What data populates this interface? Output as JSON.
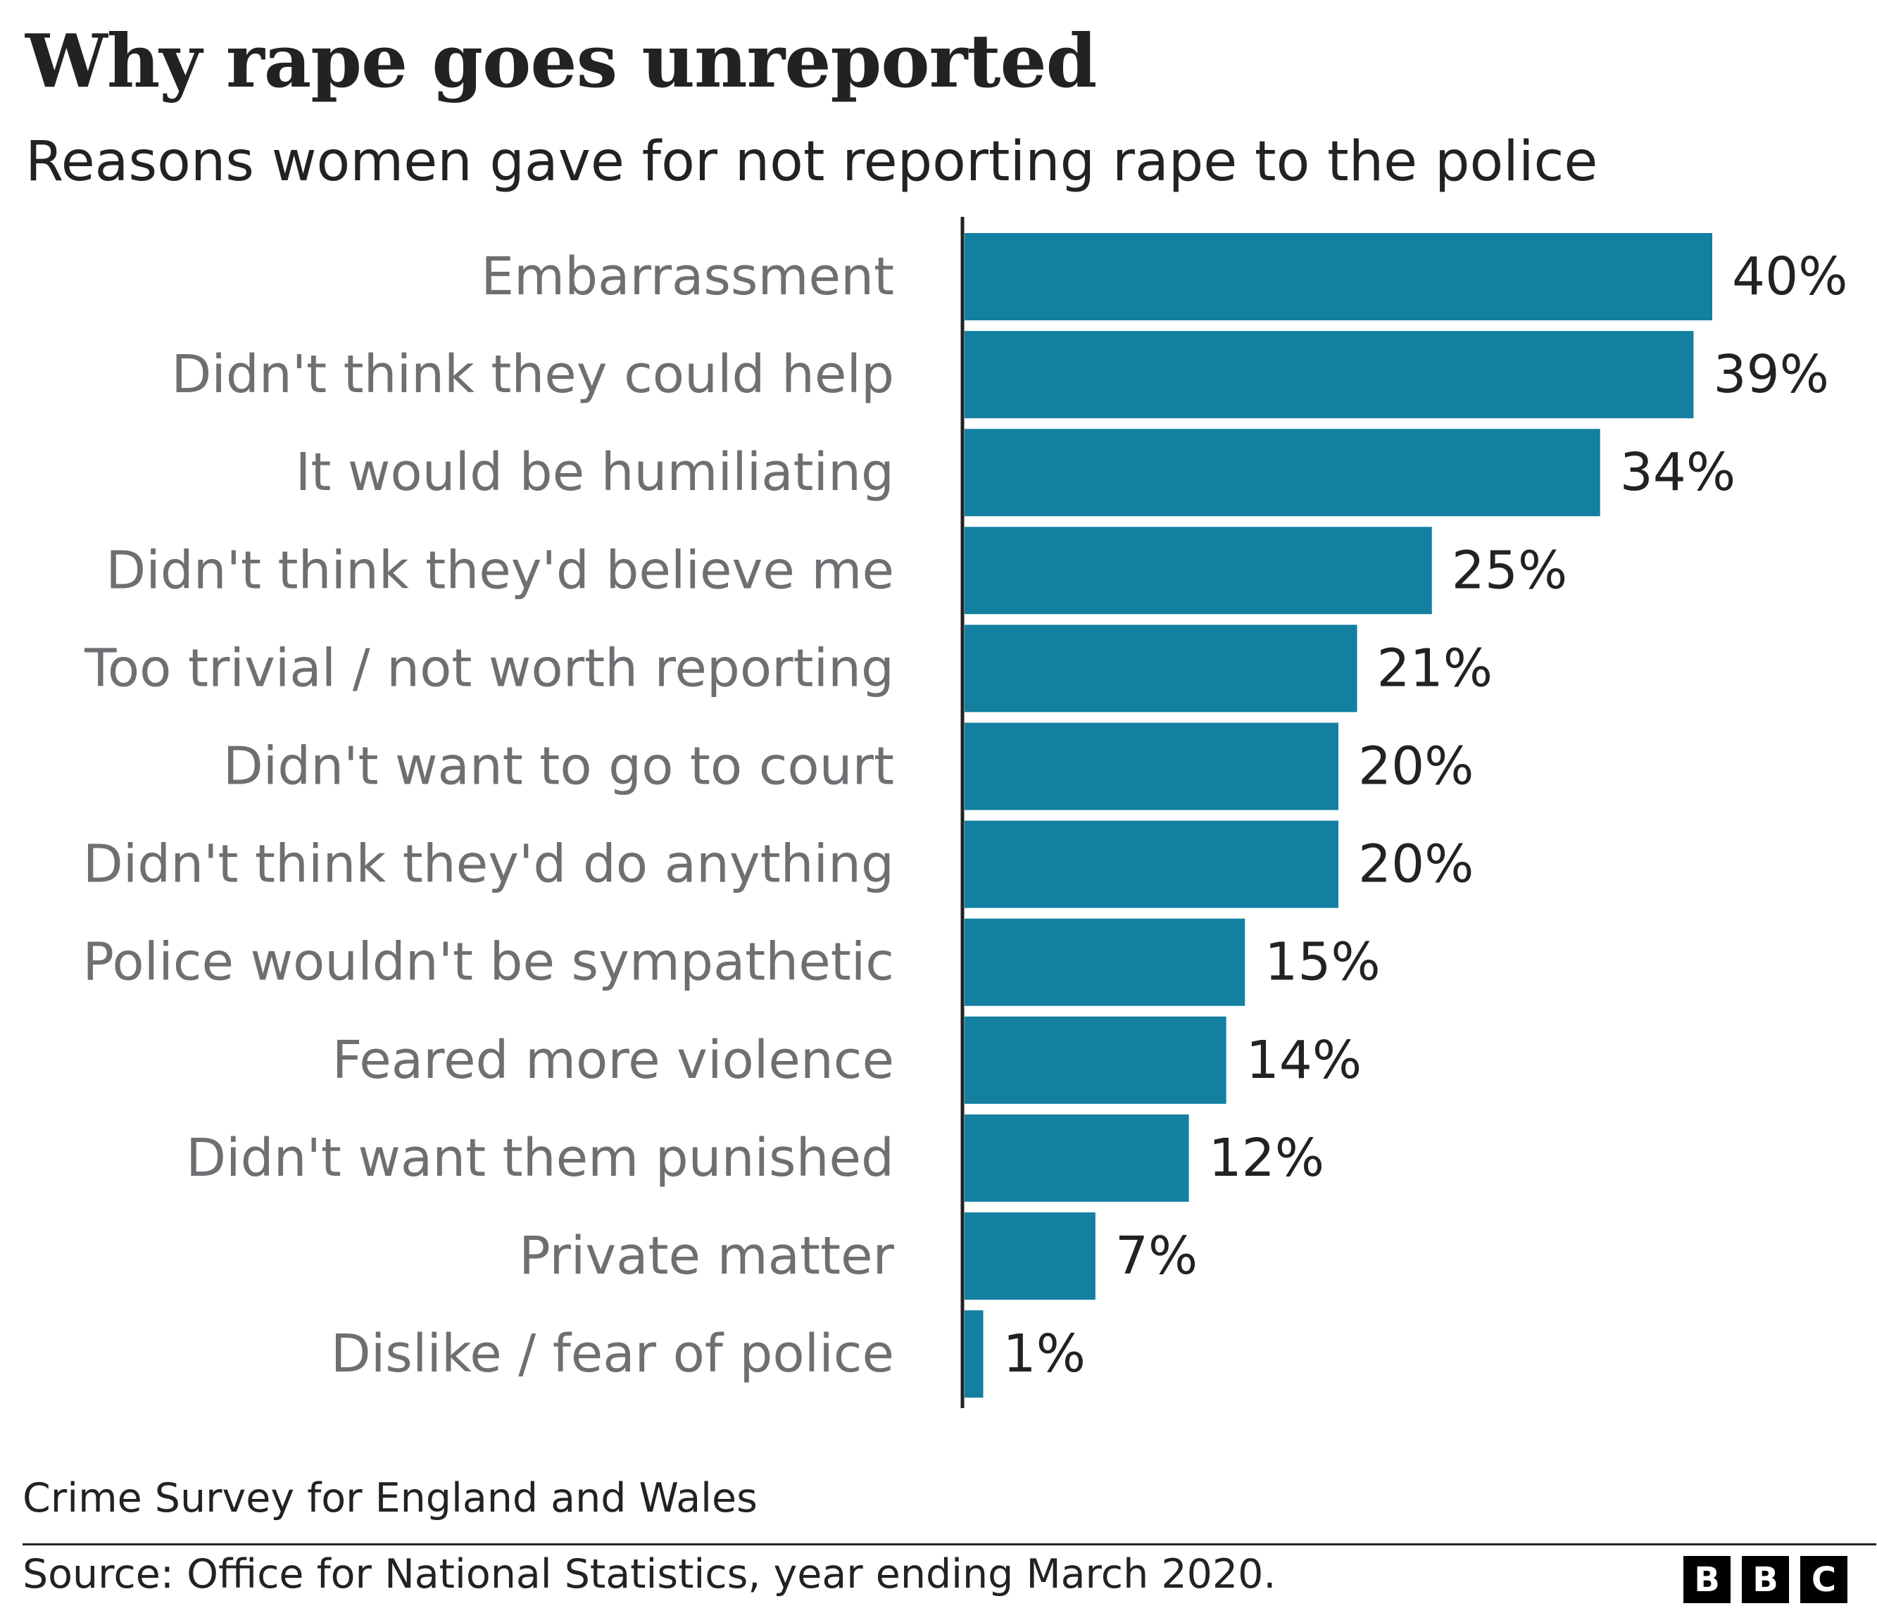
{
  "header": {
    "title": "Why rape goes unreported",
    "subtitle": "Reasons women gave for not reporting rape to the police"
  },
  "footer": {
    "note": "Crime Survey for England and Wales",
    "source": "Source: Office for National Statistics, year ending March 2020.",
    "logo": [
      "B",
      "B",
      "C"
    ]
  },
  "colors": {
    "bar": "#1380A1",
    "axis": "#222222",
    "category_text": "#6E6E73",
    "value_text": "#222222"
  },
  "chart_data": {
    "type": "bar",
    "orientation": "horizontal",
    "title": "Why rape goes unreported",
    "subtitle": "Reasons women gave for not reporting rape to the police",
    "categories": [
      "Embarrassment",
      "Didn't think they could help",
      "It would be humiliating",
      "Didn't think they'd believe me",
      "Too trivial / not worth reporting",
      "Didn't want to go to court",
      "Didn't think they'd do anything",
      "Police wouldn't be sympathetic",
      "Feared more violence",
      "Didn't want them punished",
      "Private matter",
      "Dislike / fear of police"
    ],
    "values": [
      40,
      39,
      34,
      25,
      21,
      20,
      20,
      15,
      14,
      12,
      7,
      1
    ],
    "value_labels": [
      "40%",
      "39%",
      "34%",
      "25%",
      "21%",
      "20%",
      "20%",
      "15%",
      "14%",
      "12%",
      "7%",
      "1%"
    ],
    "unit": "%",
    "xlim": [
      0,
      40
    ],
    "grid": false,
    "legend": "none"
  }
}
